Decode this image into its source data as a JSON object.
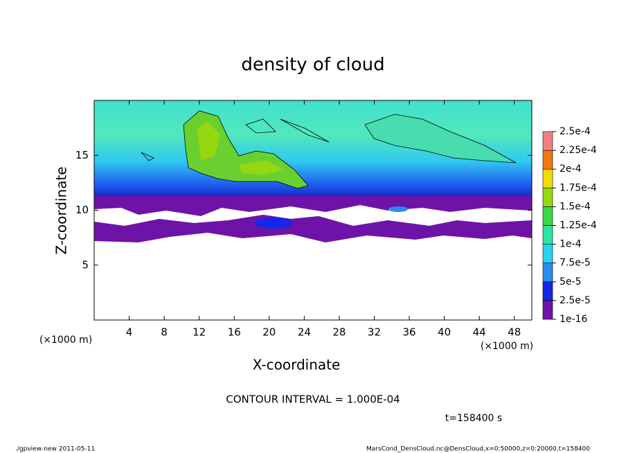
{
  "chart_data": {
    "type": "contour",
    "title": "density of cloud",
    "x_label": "X-coordinate",
    "y_label": "Z-coordinate",
    "x_unit_left": "(×1000 m)",
    "x_unit_right": "(×1000 m)",
    "xlim": [
      0,
      50
    ],
    "xticks": [
      4,
      8,
      12,
      16,
      20,
      24,
      28,
      32,
      36,
      40,
      44,
      48
    ],
    "ylim": [
      0,
      20
    ],
    "yticks": [
      5,
      10,
      15
    ],
    "colorbar": {
      "levels": [
        1e-16,
        {
          "value": 2.5e-05,
          "label": "2.5e-5"
        },
        {
          "value": 5e-05,
          "label": "5e-5"
        },
        {
          "value": 7.5e-05,
          "label": "7.5e-5"
        },
        {
          "value": 0.0001,
          "label": "1e-4"
        },
        {
          "value": 0.000125,
          "label": "1.25e-4"
        },
        {
          "value": 0.00015,
          "label": "1.5e-4"
        },
        {
          "value": 0.000175,
          "label": "1.75e-4"
        },
        {
          "value": 0.0002,
          "label": "2e-4"
        },
        {
          "value": 0.000225,
          "label": "2.25e-4"
        },
        {
          "value": 0.00025,
          "label": "2.5e-4"
        }
      ],
      "colors": [
        "#6e13a8",
        "#1428e6",
        "#2a8cf0",
        "#28d2f0",
        "#2ae6a0",
        "#38d848",
        "#96d810",
        "#f0dc00",
        "#f07810",
        "#f08080"
      ]
    },
    "contour_note": "CONTOUR INTERVAL = 1.000E-04",
    "time_label": "t=158400 s",
    "footer_left": "./gpview-new  2011-05-11",
    "footer_right": "MarsCond_DensCloud.nc@DensCloud,x=0:50000,z=0:20000,t=158400"
  }
}
